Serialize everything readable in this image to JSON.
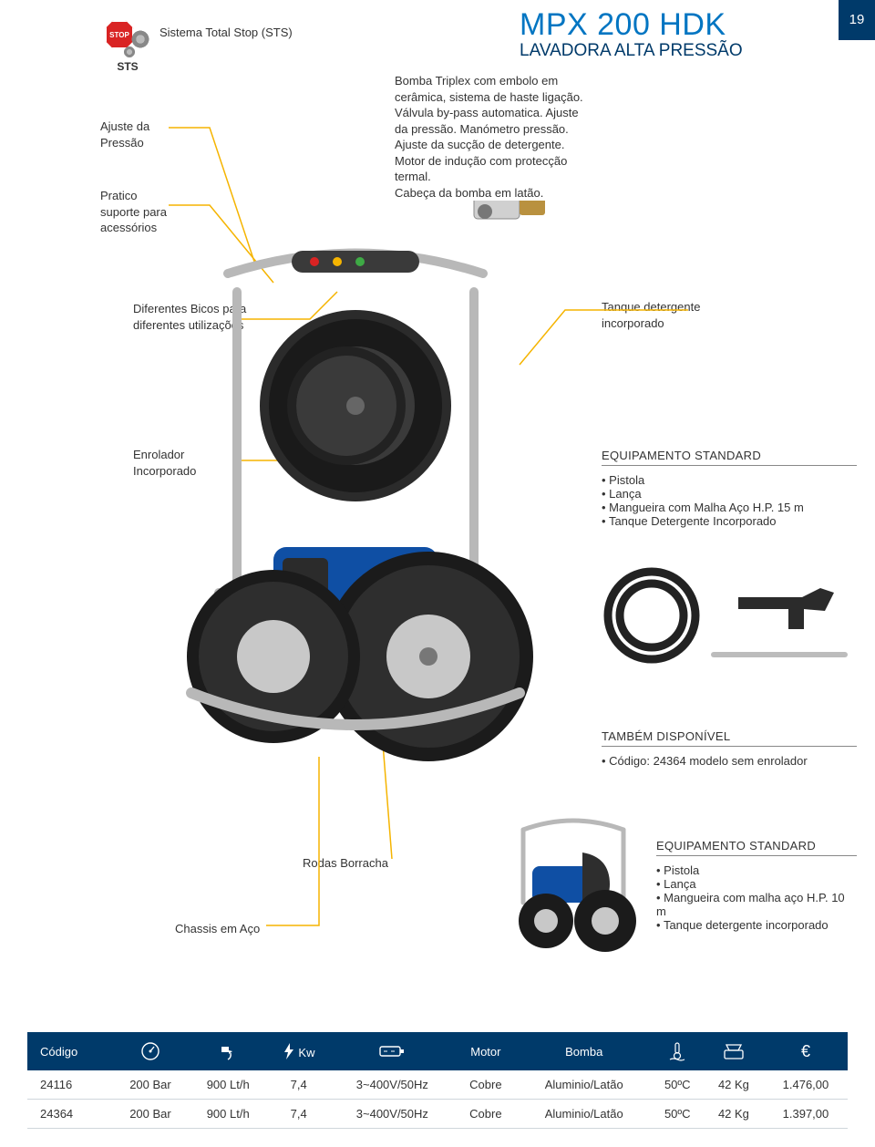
{
  "page_number": "19",
  "title": "MPX 200 HDK",
  "subtitle": "LAVADORA ALTA PRESSÃO",
  "colors": {
    "brand_blue": "#0175c2",
    "dark_blue": "#003a6a",
    "accent_yellow": "#f5b400",
    "stop_red": "#d92323",
    "text": "#333333",
    "border_gray": "#cfd6db"
  },
  "sts": {
    "stop_text": "STOP",
    "label": "STS",
    "caption": "Sistema Total Stop (STS)"
  },
  "callouts": {
    "ajuste_pressao": "Ajuste da\nPressão",
    "pratico": "Pratico\nsuporte para\nacessórios",
    "bomba": "Bomba Triplex com embolo em cerâmica, sistema de haste ligação. Válvula by-pass automatica. Ajuste da pressão. Manómetro pressão. Ajuste da sucção de detergente. Motor de indução com protecção termal.\nCabeça da bomba em latão.",
    "bicos": "Diferentes Bicos para diferentes utilizações",
    "tanque": "Tanque detergente\nincorporado",
    "enrolador": "Enrolador\nIncorporado",
    "rodas": "Rodas Borracha",
    "chassis": "Chassis em Aço"
  },
  "equipment1": {
    "title": "EQUIPAMENTO STANDARD",
    "items": [
      "Pistola",
      "Lança",
      "Mangueira com Malha Aço H.P. 15 m",
      "Tanque Detergente Incorporado"
    ]
  },
  "also_available": {
    "title": "TAMBÉM DISPONÍVEL",
    "items": [
      "Código: 24364 modelo sem enrolador"
    ]
  },
  "equipment2": {
    "title": "EQUIPAMENTO STANDARD",
    "items": [
      "Pistola",
      "Lança",
      "Mangueira com malha aço H.P. 10 m",
      "Tanque detergente incorporado"
    ]
  },
  "table": {
    "headers": [
      "Código",
      "pressure",
      "flow",
      "Kw",
      "voltage",
      "Motor",
      "Bomba",
      "temp",
      "weight",
      "€"
    ],
    "header_labels": {
      "codigo": "Código",
      "kw": "Kw",
      "motor": "Motor",
      "bomba": "Bomba",
      "euro": "€"
    },
    "rows": [
      [
        "24116",
        "200 Bar",
        "900 Lt/h",
        "7,4",
        "3~400V/50Hz",
        "Cobre",
        "Aluminio/Latão",
        "50ºC",
        "42 Kg",
        "1.476,00"
      ],
      [
        "24364",
        "200 Bar",
        "900 Lt/h",
        "7,4",
        "3~400V/50Hz",
        "Cobre",
        "Aluminio/Latão",
        "50ºC",
        "42 Kg",
        "1.397,00"
      ]
    ]
  }
}
